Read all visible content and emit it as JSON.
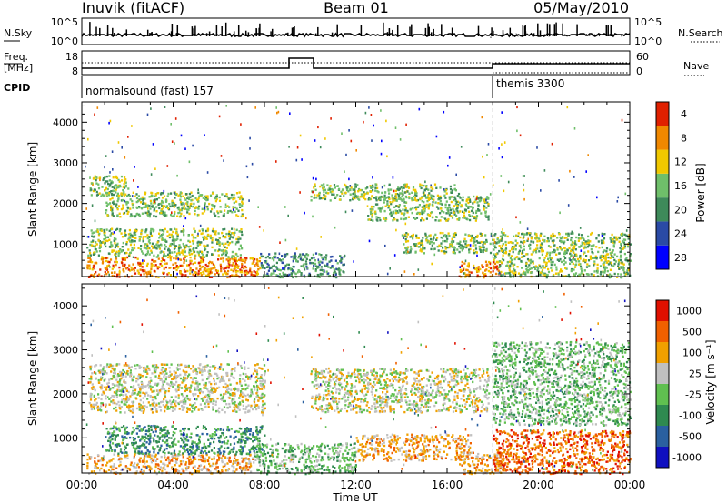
{
  "header": {
    "station": "Inuvik (fitACF)",
    "beam": "Beam 01",
    "date": "05/May/2010"
  },
  "side_labels": {
    "nsky": "N.Sky",
    "freq_line1": "Freq.",
    "freq_line2": "[MHz]",
    "cpid": "CPID",
    "nsearch": "N.Search",
    "nave": "Nave"
  },
  "scales": {
    "nsky_hi": "10^5",
    "nsky_lo": "10^0",
    "freq_hi": "18",
    "freq_lo": "8",
    "nave_hi": "60",
    "nave_lo": "0"
  },
  "cpid": {
    "first": "normalsound (fast) 157",
    "second": "themis 3300"
  },
  "x_axis": {
    "label": "Time UT",
    "ticks": [
      "00:00",
      "04:00",
      "08:00",
      "12:00",
      "16:00",
      "20:00",
      "00:00"
    ]
  },
  "chart_data": [
    {
      "type": "heatmap",
      "name": "power",
      "ylabel": "Slant Range [km]",
      "yticks": [
        "1000",
        "2000",
        "3000",
        "4000"
      ],
      "ylim": [
        200,
        4500
      ],
      "xlim": [
        "00:00",
        "24:00"
      ],
      "colorbar_label": "Power [dB]",
      "colorbar_ticks": [
        "4",
        "8",
        "12",
        "16",
        "20",
        "24",
        "28"
      ],
      "colors": [
        "#0000ff",
        "#2a4aa5",
        "#3e8a5a",
        "#6fbf6a",
        "#f0c800",
        "#f08800",
        "#e02000"
      ],
      "bands": [
        {
          "t0": 0.2,
          "t1": 7.8,
          "r0": 200,
          "r1": 700,
          "level": 5
        },
        {
          "t0": 0.2,
          "t1": 7.0,
          "r0": 700,
          "r1": 1400,
          "level": 3
        },
        {
          "t0": 0.3,
          "t1": 2.0,
          "r0": 2200,
          "r1": 2700,
          "level": 3
        },
        {
          "t0": 1.0,
          "t1": 7.0,
          "r0": 1700,
          "r1": 2300,
          "level": 3
        },
        {
          "t0": 7.8,
          "t1": 11.5,
          "r0": 200,
          "r1": 800,
          "level": 2
        },
        {
          "t0": 10.0,
          "t1": 16.5,
          "r0": 2100,
          "r1": 2500,
          "level": 3
        },
        {
          "t0": 12.5,
          "t1": 17.8,
          "r0": 1600,
          "r1": 2200,
          "level": 3
        },
        {
          "t0": 14.0,
          "t1": 18.0,
          "r0": 800,
          "r1": 1300,
          "level": 3
        },
        {
          "t0": 16.5,
          "t1": 18.3,
          "r0": 200,
          "r1": 600,
          "level": 5
        },
        {
          "t0": 18.0,
          "t1": 24.0,
          "r0": 200,
          "r1": 1300,
          "level": 3
        }
      ]
    },
    {
      "type": "heatmap",
      "name": "velocity",
      "ylabel": "Slant Range [km]",
      "yticks": [
        "1000",
        "2000",
        "3000",
        "4000"
      ],
      "ylim": [
        200,
        4500
      ],
      "xlim": [
        "00:00",
        "24:00"
      ],
      "colorbar_label": "Velocity [m s⁻¹]",
      "colorbar_ticks": [
        "1000",
        "500",
        "100",
        "25",
        "-25",
        "-100",
        "-500",
        "-1000"
      ],
      "colors": [
        "#1010c0",
        "#2a60a0",
        "#2f8a50",
        "#60c050",
        "#c0c0c0",
        "#f0a000",
        "#f06000",
        "#e01000"
      ],
      "bands": [
        {
          "t0": 0.2,
          "t1": 7.5,
          "r0": 200,
          "r1": 650,
          "level": 5
        },
        {
          "t0": 1.0,
          "t1": 8.0,
          "r0": 650,
          "r1": 1300,
          "level": 2
        },
        {
          "t0": 0.3,
          "t1": 8.0,
          "r0": 1600,
          "r1": 2700,
          "level": 4
        },
        {
          "t0": 7.5,
          "t1": 12.0,
          "r0": 200,
          "r1": 900,
          "level": 3
        },
        {
          "t0": 10.0,
          "t1": 17.8,
          "r0": 1600,
          "r1": 2600,
          "level": 4
        },
        {
          "t0": 12.0,
          "t1": 17.0,
          "r0": 500,
          "r1": 1100,
          "level": 5
        },
        {
          "t0": 16.5,
          "t1": 18.5,
          "r0": 200,
          "r1": 700,
          "level": 5
        },
        {
          "t0": 18.0,
          "t1": 24.0,
          "r0": 200,
          "r1": 1200,
          "level": 6
        },
        {
          "t0": 18.0,
          "t1": 24.0,
          "r0": 1300,
          "r1": 3200,
          "level": 3
        }
      ]
    }
  ]
}
